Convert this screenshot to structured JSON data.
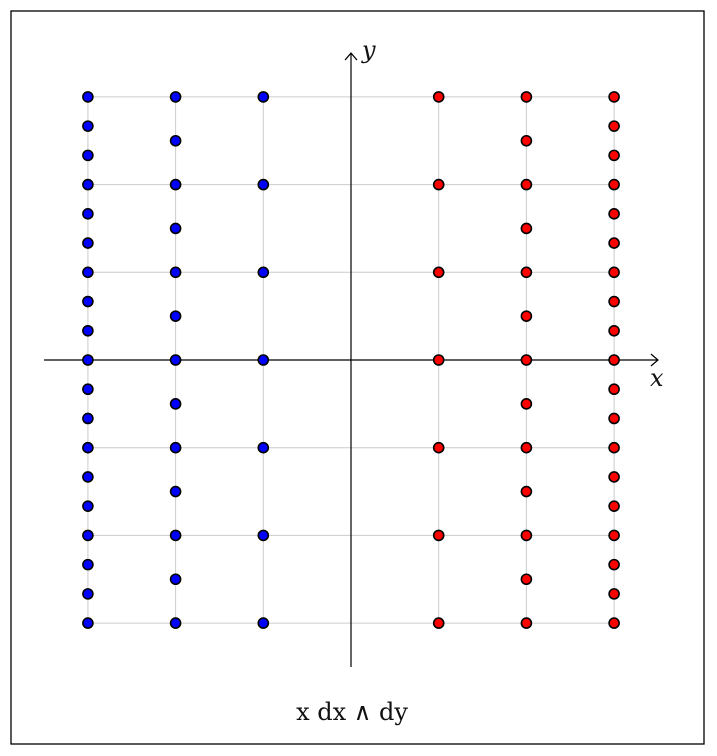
{
  "diagram": {
    "x_axis_label": "x",
    "y_axis_label": "y",
    "caption": "x dx ∧ dy",
    "colors": {
      "negative_x_dots": "#0000ff",
      "positive_x_dots": "#ff0000",
      "dot_stroke": "#000000",
      "grid": "#cccccc",
      "axes": "#000000",
      "frame": "#000000"
    },
    "grid_values": [
      -3,
      -2,
      -1,
      0,
      1,
      2,
      3
    ],
    "x_range": [
      -3.5,
      3.5
    ],
    "y_range": [
      -3.5,
      3.5
    ],
    "columns": [
      {
        "x": -3,
        "color": "blue",
        "points_per_unit": 3
      },
      {
        "x": -2,
        "color": "blue",
        "points_per_unit": 2
      },
      {
        "x": -1,
        "color": "blue",
        "points_per_unit": 1
      },
      {
        "x": 1,
        "color": "red",
        "points_per_unit": 1
      },
      {
        "x": 2,
        "color": "red",
        "points_per_unit": 2
      },
      {
        "x": 3,
        "color": "red",
        "points_per_unit": 3
      }
    ]
  }
}
